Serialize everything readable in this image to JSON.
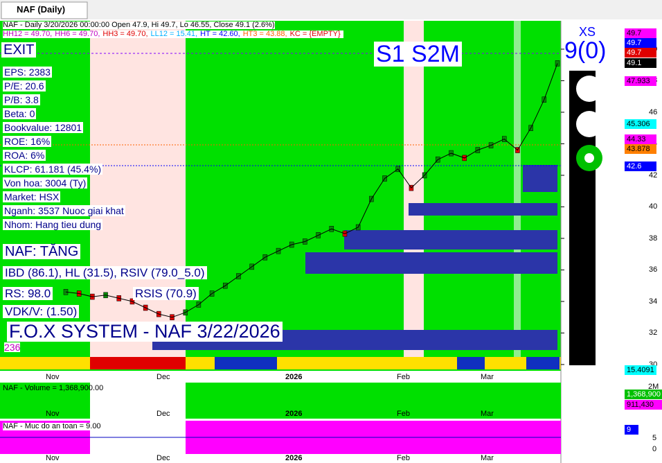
{
  "tab_title": "NAF (Daily)",
  "header": {
    "line1": "NAF - Daily 3/20/2026 00:00:00 Open 47.9, Hi 49.7, Lo 46.55, Close 49.1 (2.6%)",
    "line2": [
      "HH12 = 49.70,",
      "HH6 = 49.70,",
      "HH3 = 49.70,",
      "LL12 = 15.41,",
      "HT = 42.60,",
      "HT3 = 43.88,",
      "KC = {EMPTY}"
    ]
  },
  "exit": "EXIT",
  "left_info": [
    "EPS: 2383",
    "P/E: 20.6",
    "P/B: 3.8",
    "Beta: 0",
    "Bookvalue: 12801",
    "ROE: 16%",
    "ROA: 6%",
    "KLCP: 61.181 (45.4%)",
    "Von hoa: 3004 (Ty)",
    "Market: HSX",
    "Nganh: 3537 Nuoc giai khat",
    "Nhom: Hang tieu dung"
  ],
  "status": [
    "NAF: TĂNG",
    "IBD (86.1), HL (31.5), RSIV (79.0_5.0)",
    "RS: 98.0",
    "RSIS (70.9)",
    "VDK/V:  (1.50)"
  ],
  "banner": "F.O.X SYSTEM - NAF 3/22/2026",
  "count": "236",
  "signal": "S1 S2M",
  "xs": "XS",
  "xs_value": "9(0)",
  "chart_data": {
    "type": "line",
    "closes": [
      34.6,
      34.5,
      34.3,
      34.4,
      34.2,
      34.0,
      33.6,
      33.2,
      33.0,
      33.3,
      33.8,
      34.5,
      35.0,
      35.6,
      36.2,
      36.8,
      37.2,
      37.6,
      37.8,
      38.2,
      38.6,
      38.3,
      38.7,
      40.5,
      41.8,
      42.4,
      41.2,
      42.0,
      43.0,
      43.4,
      43.1,
      43.6,
      43.9,
      44.3,
      43.6,
      45.0,
      46.8,
      49.1
    ],
    "color": "#000000",
    "ylim": [
      29.6,
      51.8
    ],
    "yticks": [
      30,
      32,
      34,
      36,
      38,
      40,
      42,
      44,
      46,
      48,
      50
    ]
  },
  "price_tags": [
    "49.7",
    "49.7",
    "49.7",
    "49.1",
    "47.933",
    "45.306",
    "44.33",
    "43.878",
    "42.6",
    "15.4091"
  ],
  "x_labels": [
    "Nov",
    "Dec",
    "2026",
    "Feb",
    "Mar"
  ],
  "volume": {
    "label": "NAF - Volume = 1,368,900.00",
    "axis": "2M",
    "tags": [
      "1,368,900",
      "911,430"
    ]
  },
  "safety": {
    "label": "NAF - Muc do an toan = 9.00",
    "ticks": [
      "5",
      "0"
    ],
    "tag": "9"
  }
}
